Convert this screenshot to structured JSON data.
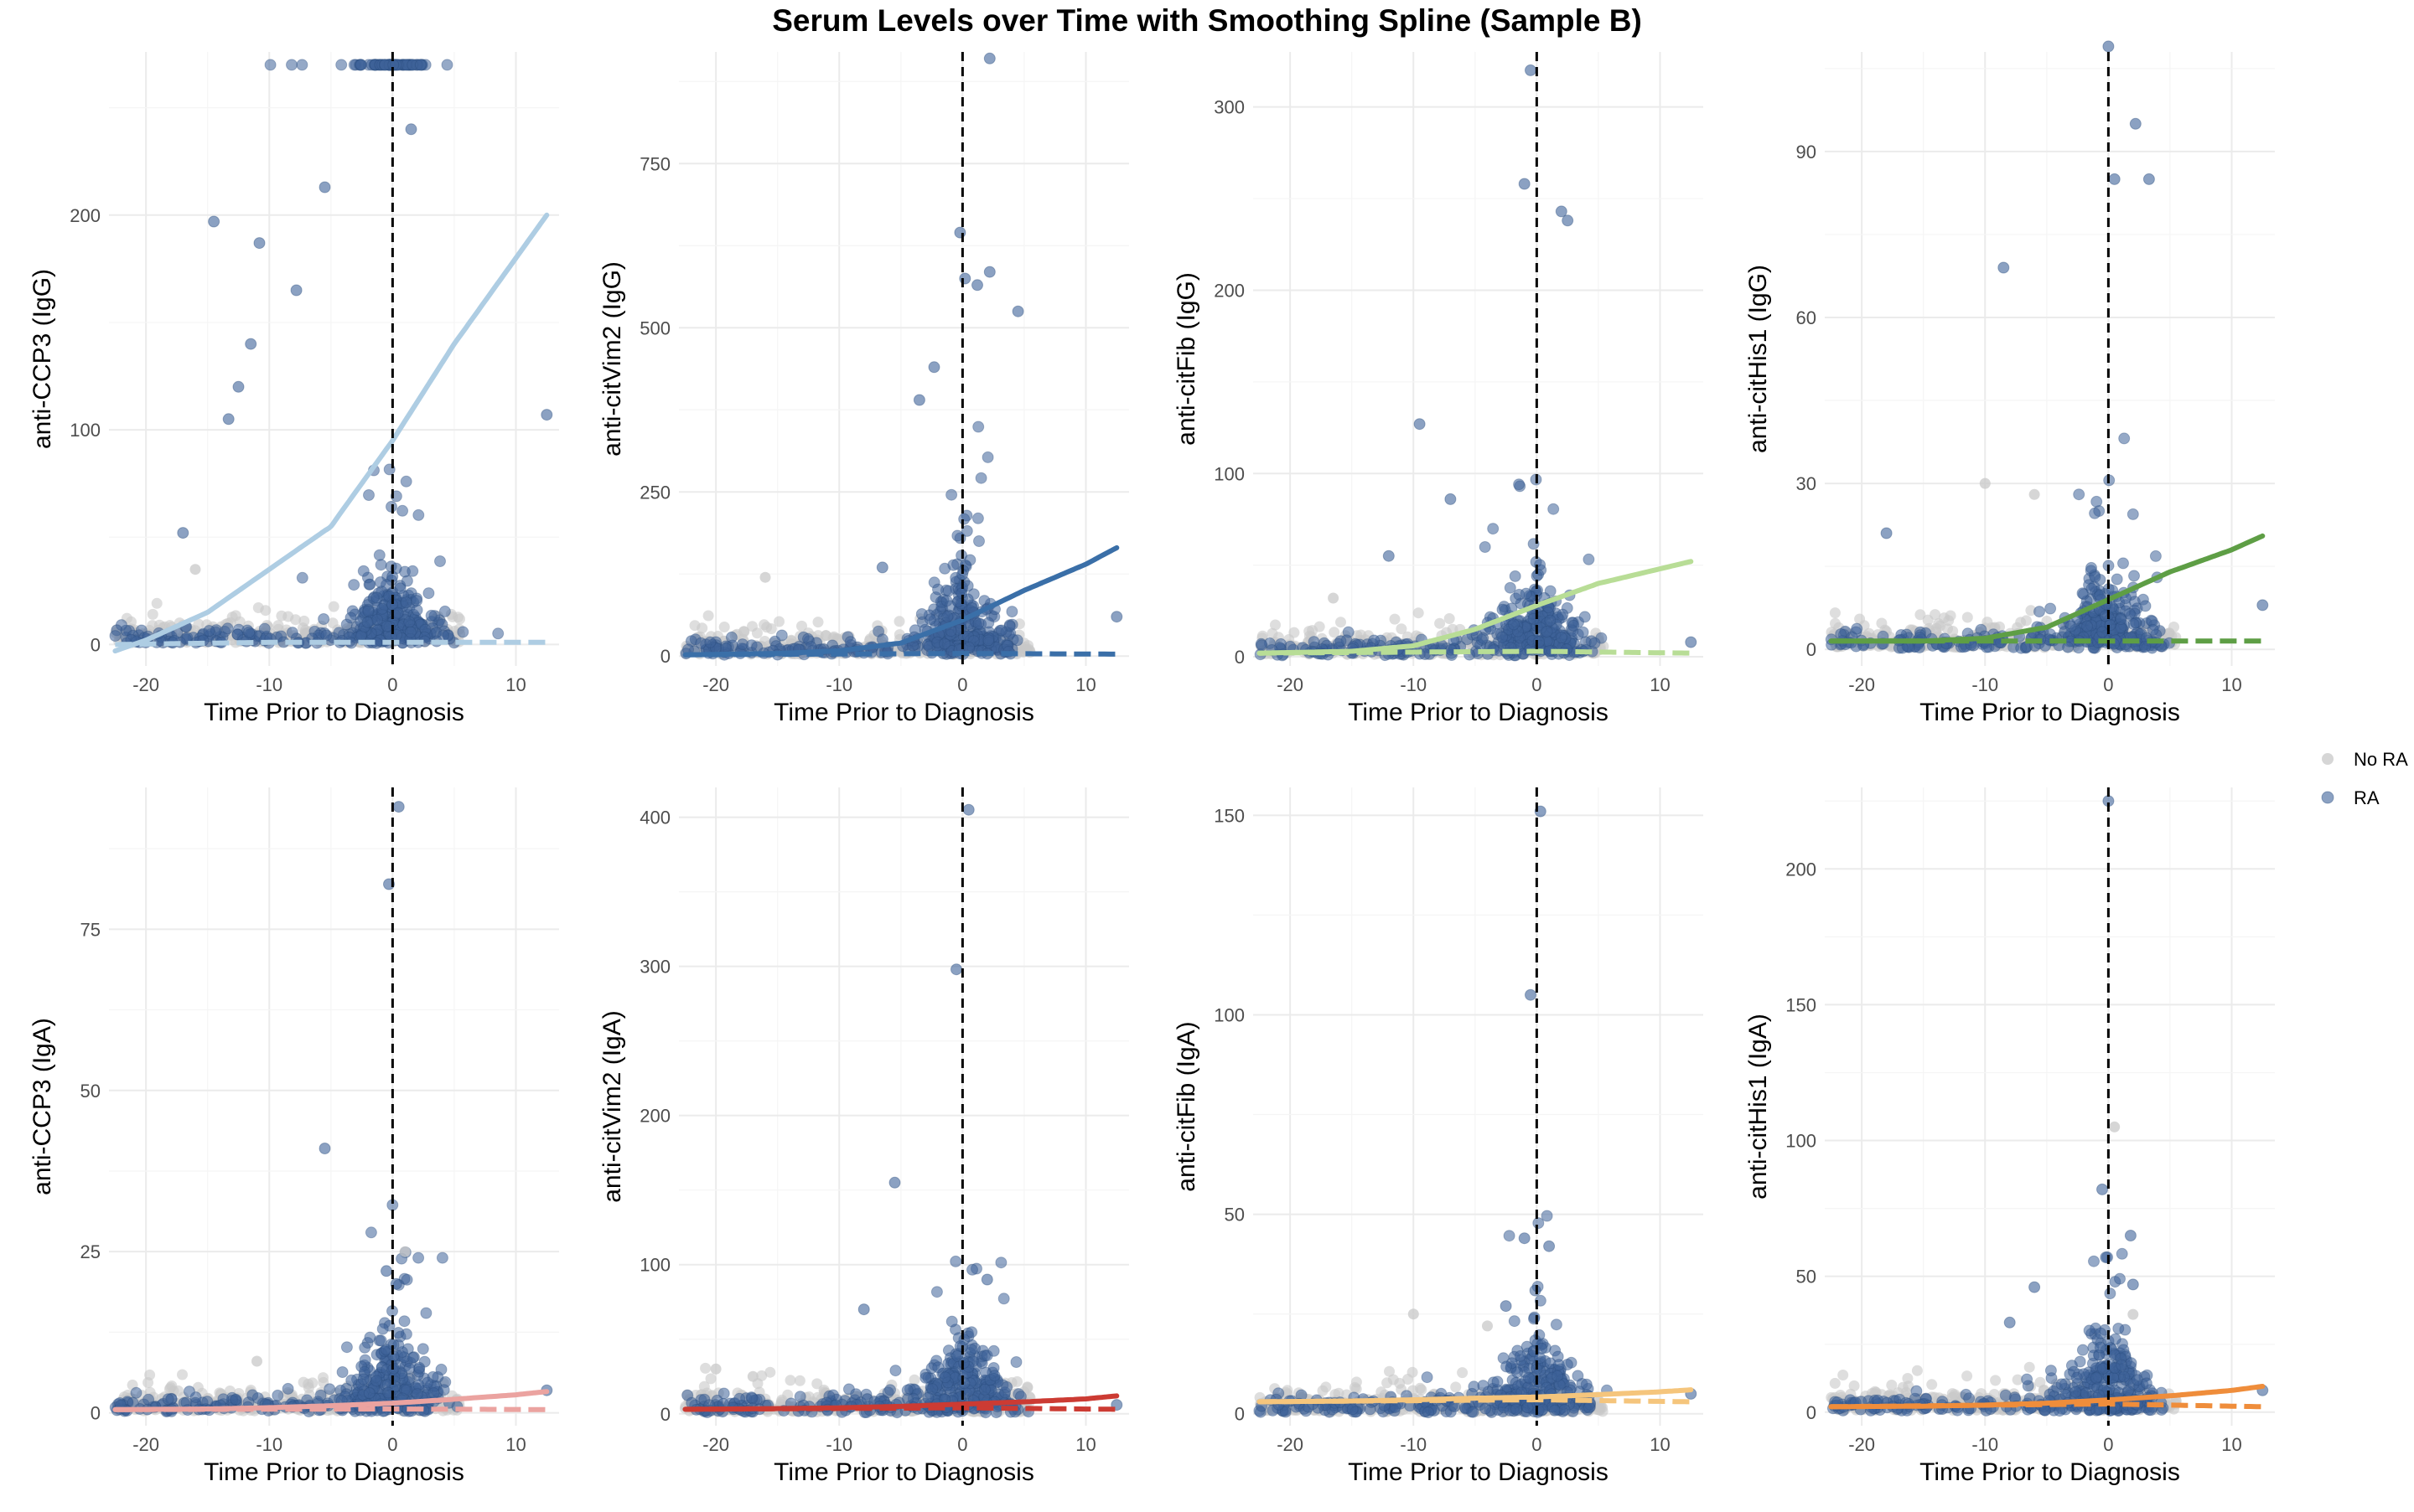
{
  "title": "Serum Levels over Time with Smoothing Spline (Sample B)",
  "legend": {
    "position": "right",
    "items": [
      {
        "label": "No RA",
        "color": "#c8c8c8"
      },
      {
        "label": "RA",
        "color": "#3e6299"
      }
    ]
  },
  "chart_data": [
    {
      "type": "scatter",
      "panel": "anti-CCP3 (IgG)",
      "xlabel": "Time Prior to Diagnosis",
      "ylabel": "anti-CCP3 (IgG)",
      "xlim": [
        -23,
        13.5
      ],
      "ylim": [
        -10,
        276
      ],
      "xticks": [
        -20,
        -10,
        0,
        10
      ],
      "yticks": [
        0,
        100,
        200
      ],
      "fit_color": "#aecde3",
      "vline": 0,
      "saturation_value": 270,
      "spline_RA": {
        "x": [
          -22.5,
          -20,
          -15,
          -10,
          -5,
          0,
          5,
          10,
          12.5
        ],
        "y": [
          -3,
          2,
          15,
          35,
          55,
          95,
          140,
          180,
          200
        ]
      },
      "spline_NoRA": {
        "x": [
          -22.5,
          -10,
          0,
          10,
          12.5
        ],
        "y": [
          0,
          1,
          1,
          1,
          1
        ]
      },
      "outliers_RA": [
        {
          "x": -14.5,
          "y": 197
        },
        {
          "x": -10.8,
          "y": 187
        },
        {
          "x": -11.5,
          "y": 140
        },
        {
          "x": -7.8,
          "y": 165
        },
        {
          "x": -12.5,
          "y": 120
        },
        {
          "x": -13.3,
          "y": 105
        },
        {
          "x": 12.5,
          "y": 107
        },
        {
          "x": -17,
          "y": 52
        },
        {
          "x": -5.5,
          "y": 213
        },
        {
          "x": 1.5,
          "y": 240
        }
      ],
      "outliers_NoRA": [
        {
          "x": -16,
          "y": 35
        }
      ]
    },
    {
      "type": "scatter",
      "panel": "anti-citVim2 (IgG)",
      "xlabel": "Time Prior to Diagnosis",
      "ylabel": "anti-citVim2 (IgG)",
      "xlim": [
        -23,
        13.5
      ],
      "ylim": [
        -15,
        920
      ],
      "xticks": [
        -20,
        -10,
        0,
        10
      ],
      "yticks": [
        0,
        250,
        500,
        750
      ],
      "fit_color": "#3a6fa8",
      "vline": 0,
      "spline_RA": {
        "x": [
          -22.5,
          -15,
          -10,
          -5,
          0,
          5,
          10,
          12.5
        ],
        "y": [
          2,
          4,
          8,
          20,
          55,
          100,
          140,
          165
        ]
      },
      "spline_NoRA": {
        "x": [
          -22.5,
          0,
          12.5
        ],
        "y": [
          2,
          4,
          3
        ]
      },
      "outliers_RA": [
        {
          "x": 2.2,
          "y": 910
        },
        {
          "x": -0.2,
          "y": 645
        },
        {
          "x": 0.2,
          "y": 575
        },
        {
          "x": 2.2,
          "y": 585
        },
        {
          "x": 1.2,
          "y": 565
        },
        {
          "x": 4.5,
          "y": 525
        },
        {
          "x": -2.3,
          "y": 440
        },
        {
          "x": -3.5,
          "y": 390
        },
        {
          "x": -6.5,
          "y": 135
        },
        {
          "x": 12.5,
          "y": 60
        }
      ],
      "outliers_NoRA": [
        {
          "x": -16,
          "y": 120
        }
      ]
    },
    {
      "type": "scatter",
      "panel": "anti-citFib (IgG)",
      "xlabel": "Time Prior to Diagnosis",
      "ylabel": "anti-citFib (IgG)",
      "xlim": [
        -23,
        13.5
      ],
      "ylim": [
        -5,
        330
      ],
      "xticks": [
        -20,
        -10,
        0,
        10
      ],
      "yticks": [
        0,
        100,
        200,
        300
      ],
      "fit_color": "#b8dd96",
      "vline": 0,
      "spline_RA": {
        "x": [
          -22.5,
          -15,
          -10,
          -5,
          0,
          5,
          10,
          12.5
        ],
        "y": [
          2,
          3,
          6,
          15,
          28,
          40,
          48,
          52
        ]
      },
      "spline_NoRA": {
        "x": [
          -22.5,
          0,
          12.5
        ],
        "y": [
          2,
          3,
          2
        ]
      },
      "outliers_RA": [
        {
          "x": -0.5,
          "y": 320
        },
        {
          "x": -1,
          "y": 258
        },
        {
          "x": 2,
          "y": 243
        },
        {
          "x": 2.5,
          "y": 238
        },
        {
          "x": -9.5,
          "y": 127
        },
        {
          "x": -7,
          "y": 86
        },
        {
          "x": -12,
          "y": 55
        },
        {
          "x": 12.5,
          "y": 8
        }
      ],
      "outliers_NoRA": [
        {
          "x": -16.5,
          "y": 32
        }
      ]
    },
    {
      "type": "scatter",
      "panel": "anti-citHis1 (IgG)",
      "xlabel": "Time Prior to Diagnosis",
      "ylabel": "anti-citHis1 (IgG)",
      "xlim": [
        -23,
        13.5
      ],
      "ylim": [
        -3,
        108
      ],
      "xticks": [
        -20,
        -10,
        0,
        10
      ],
      "yticks": [
        0,
        30,
        60,
        90
      ],
      "fit_color": "#5e9e45",
      "vline": 0,
      "spline_RA": {
        "x": [
          -22.5,
          -15,
          -10,
          -5,
          0,
          5,
          10,
          12.5
        ],
        "y": [
          1.5,
          1.5,
          2,
          4,
          9,
          14,
          18,
          20.5
        ]
      },
      "spline_NoRA": {
        "x": [
          -22.5,
          0,
          12.5
        ],
        "y": [
          1.5,
          1.5,
          1.5
        ]
      },
      "outliers_RA": [
        {
          "x": 0,
          "y": 109
        },
        {
          "x": 2.2,
          "y": 95
        },
        {
          "x": 0.5,
          "y": 85
        },
        {
          "x": 3.3,
          "y": 85
        },
        {
          "x": -8.5,
          "y": 69
        },
        {
          "x": 12.5,
          "y": 8
        },
        {
          "x": -18,
          "y": 21
        }
      ],
      "outliers_NoRA": [
        {
          "x": -10,
          "y": 30
        },
        {
          "x": -6,
          "y": 28
        }
      ]
    },
    {
      "type": "scatter",
      "panel": "anti-CCP3 (IgA)",
      "xlabel": "Time Prior to Diagnosis",
      "ylabel": "anti-CCP3 (IgA)",
      "xlim": [
        -23,
        13.5
      ],
      "ylim": [
        -2,
        97
      ],
      "xticks": [
        -20,
        -10,
        0,
        10
      ],
      "yticks": [
        0,
        25,
        50,
        75
      ],
      "fit_color": "#eba3a0",
      "vline": 0,
      "spline_RA": {
        "x": [
          -22.5,
          -15,
          -10,
          -5,
          0,
          5,
          10,
          12.5
        ],
        "y": [
          0.5,
          0.6,
          0.8,
          1.1,
          1.5,
          2.1,
          2.8,
          3.3
        ]
      },
      "spline_NoRA": {
        "x": [
          -22.5,
          0,
          12.5
        ],
        "y": [
          0.5,
          0.6,
          0.5
        ]
      },
      "outliers_RA": [
        {
          "x": 0.5,
          "y": 94
        },
        {
          "x": -0.3,
          "y": 82
        },
        {
          "x": -5.5,
          "y": 41
        },
        {
          "x": -0.5,
          "y": 22
        },
        {
          "x": 0.3,
          "y": 20
        },
        {
          "x": 12.5,
          "y": 3.5
        }
      ],
      "outliers_NoRA": [
        {
          "x": 1,
          "y": 25
        },
        {
          "x": -11,
          "y": 8
        }
      ]
    },
    {
      "type": "scatter",
      "panel": "anti-citVim2 (IgA)",
      "xlabel": "Time Prior to Diagnosis",
      "ylabel": "anti-citVim2 (IgA)",
      "xlim": [
        -23,
        13.5
      ],
      "ylim": [
        -8,
        420
      ],
      "xticks": [
        -20,
        -10,
        0,
        10
      ],
      "yticks": [
        0,
        100,
        200,
        300,
        400
      ],
      "fit_color": "#cc3b33",
      "vline": 0,
      "spline_RA": {
        "x": [
          -22.5,
          -15,
          -10,
          -5,
          0,
          5,
          10,
          12.5
        ],
        "y": [
          3,
          3.5,
          4,
          5,
          6.5,
          8,
          10,
          12
        ]
      },
      "spline_NoRA": {
        "x": [
          -22.5,
          0,
          12.5
        ],
        "y": [
          3,
          4,
          3
        ]
      },
      "outliers_RA": [
        {
          "x": 0.5,
          "y": 405
        },
        {
          "x": -0.5,
          "y": 298
        },
        {
          "x": -5.5,
          "y": 155
        },
        {
          "x": 2,
          "y": 90
        },
        {
          "x": -8,
          "y": 70
        },
        {
          "x": 12.5,
          "y": 6
        }
      ],
      "outliers_NoRA": [
        {
          "x": -20,
          "y": 30
        },
        {
          "x": -17,
          "y": 25
        }
      ]
    },
    {
      "type": "scatter",
      "panel": "anti-citFib (IgA)",
      "xlabel": "Time Prior to Diagnosis",
      "ylabel": "anti-citFib (IgA)",
      "xlim": [
        -23,
        13.5
      ],
      "ylim": [
        -3,
        157
      ],
      "xticks": [
        -20,
        -10,
        0,
        10
      ],
      "yticks": [
        0,
        50,
        100,
        150
      ],
      "fit_color": "#f5c57c",
      "vline": 0,
      "spline_RA": {
        "x": [
          -22.5,
          -15,
          -10,
          -5,
          0,
          5,
          10,
          12.5
        ],
        "y": [
          3,
          3.2,
          3.5,
          3.9,
          4.2,
          4.8,
          5.5,
          6
        ]
      },
      "spline_NoRA": {
        "x": [
          -22.5,
          0,
          12.5
        ],
        "y": [
          3,
          3.5,
          3
        ]
      },
      "outliers_RA": [
        {
          "x": 0.3,
          "y": 151
        },
        {
          "x": -0.5,
          "y": 105
        },
        {
          "x": -1,
          "y": 44
        },
        {
          "x": 1,
          "y": 42
        },
        {
          "x": -2.5,
          "y": 27
        },
        {
          "x": 12.5,
          "y": 5
        }
      ],
      "outliers_NoRA": [
        {
          "x": -10,
          "y": 25
        },
        {
          "x": -4,
          "y": 22
        }
      ]
    },
    {
      "type": "scatter",
      "panel": "anti-citHis1 (IgA)",
      "xlabel": "Time Prior to Diagnosis",
      "ylabel": "anti-citHis1 (IgA)",
      "xlim": [
        -23,
        13.5
      ],
      "ylim": [
        -5,
        230
      ],
      "xticks": [
        -20,
        -10,
        0,
        10
      ],
      "yticks": [
        0,
        50,
        100,
        150,
        200
      ],
      "fit_color": "#ef8d3b",
      "vline": 0,
      "spline_RA": {
        "x": [
          -22.5,
          -15,
          -10,
          -5,
          0,
          5,
          10,
          12.5
        ],
        "y": [
          2,
          2.2,
          2.6,
          3.3,
          4.5,
          6,
          8,
          9.5
        ]
      },
      "spline_NoRA": {
        "x": [
          -22.5,
          0,
          12.5
        ],
        "y": [
          2,
          3,
          2
        ]
      },
      "outliers_RA": [
        {
          "x": 0,
          "y": 225
        },
        {
          "x": -0.5,
          "y": 82
        },
        {
          "x": 1.8,
          "y": 65
        },
        {
          "x": -0.2,
          "y": 57
        },
        {
          "x": 2,
          "y": 47
        },
        {
          "x": -6,
          "y": 46
        },
        {
          "x": -8,
          "y": 33
        },
        {
          "x": 12.5,
          "y": 8
        }
      ],
      "outliers_NoRA": [
        {
          "x": 0.5,
          "y": 105
        },
        {
          "x": 2,
          "y": 36
        }
      ]
    }
  ]
}
